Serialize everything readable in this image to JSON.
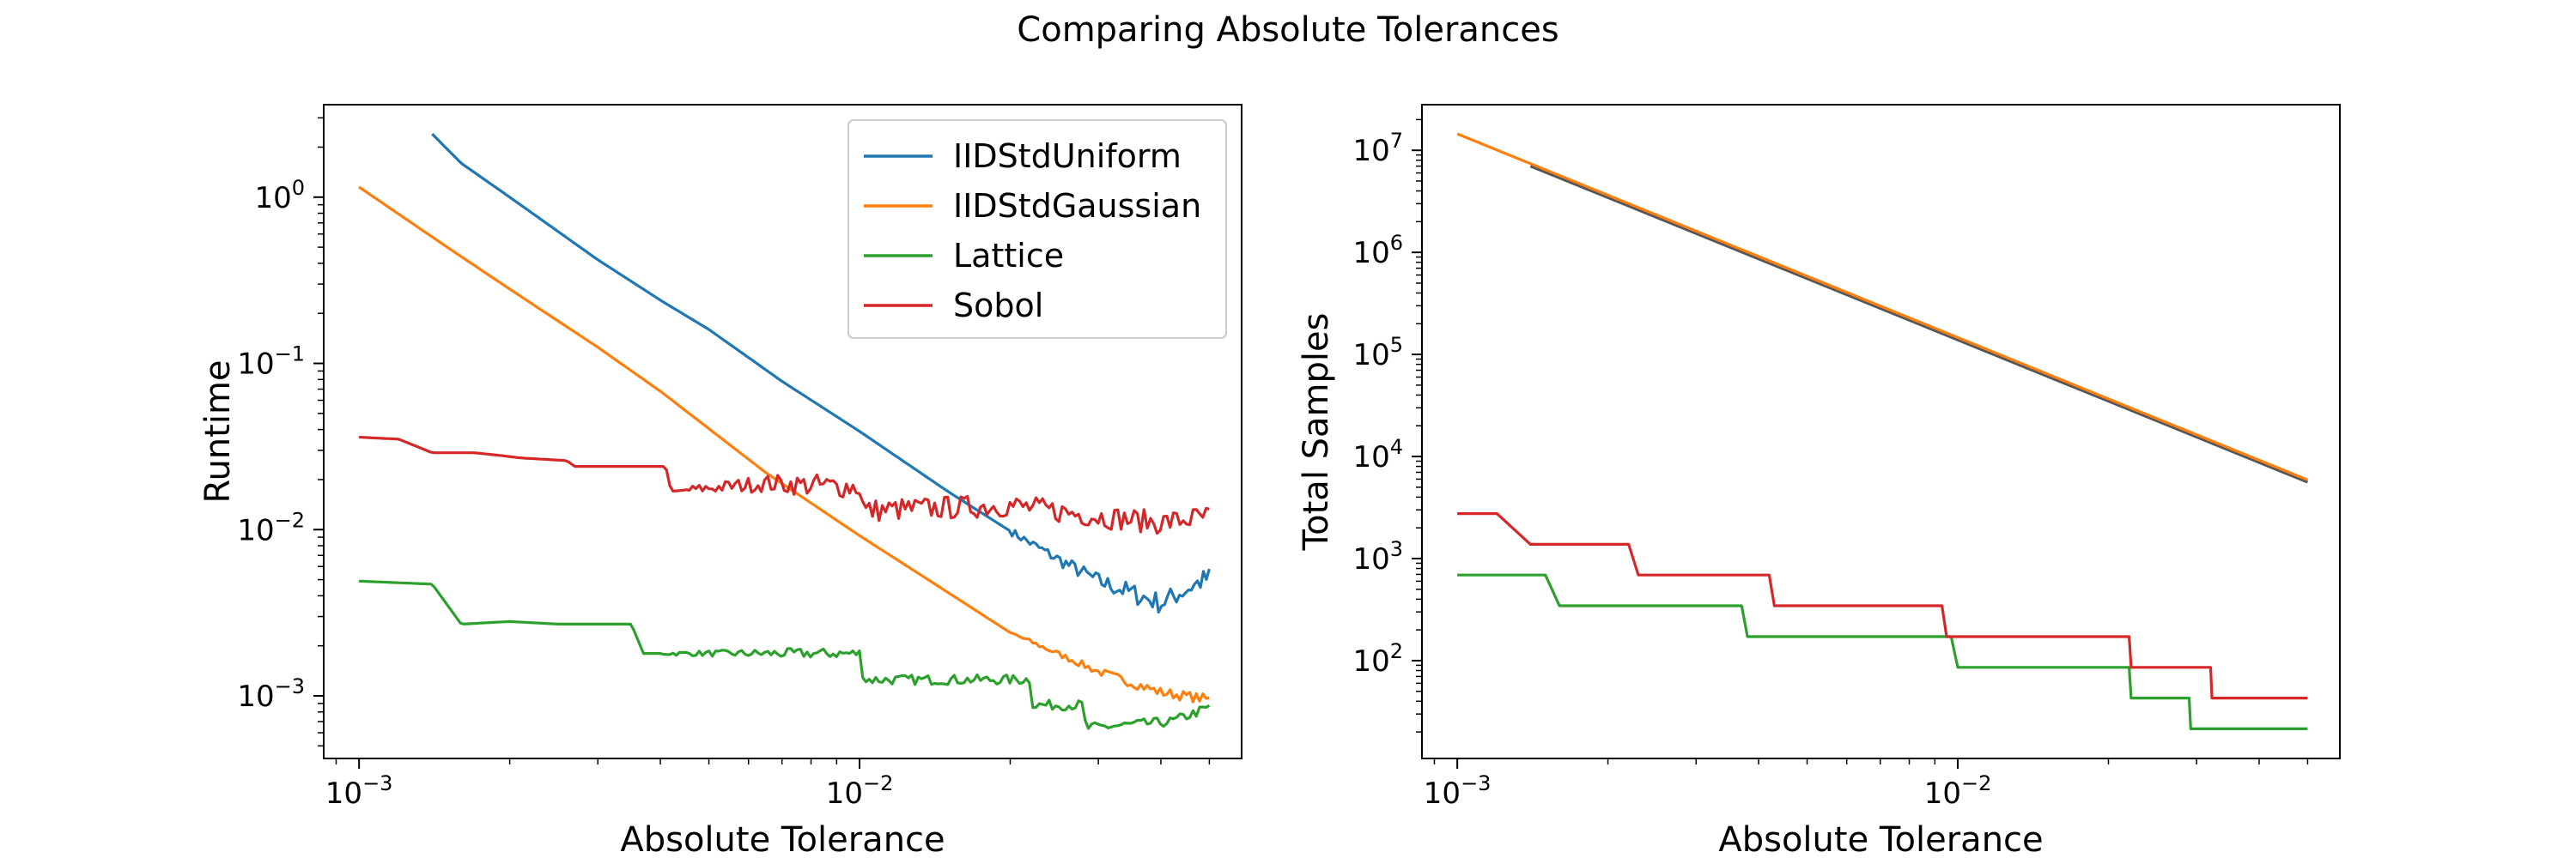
{
  "figure": {
    "suptitle": "Comparing Absolute Tolerances"
  },
  "colors": {
    "IIDStdUniform": "#1f77b4",
    "IIDStdGaussian": "#ff7f0e",
    "Lattice": "#2ca02c",
    "Sobol": "#d62728",
    "gray": "#555555"
  },
  "chart_data": [
    {
      "type": "line",
      "title": "",
      "xlabel": "Absolute Tolerance",
      "ylabel": "Runtime",
      "xscale": "log",
      "yscale": "log",
      "xlim": [
        0.00085,
        0.058
      ],
      "ylim": [
        0.00042,
        3.6
      ],
      "xticks": [
        {
          "value": 0.001,
          "base": "10",
          "exp": "−3"
        },
        {
          "value": 0.01,
          "base": "10",
          "exp": "−2"
        }
      ],
      "yticks": [
        {
          "value": 0.001,
          "base": "10",
          "exp": "−3"
        },
        {
          "value": 0.01,
          "base": "10",
          "exp": "−2"
        },
        {
          "value": 0.1,
          "base": "10",
          "exp": "−1"
        },
        {
          "value": 1,
          "base": "10",
          "exp": "0"
        }
      ],
      "legend": {
        "placement": "top-right"
      },
      "grid": false,
      "series": [
        {
          "name": "IIDStdUniform",
          "color": "#1f77b4",
          "x": [
            0.0014,
            0.0016,
            0.002,
            0.0025,
            0.003,
            0.004,
            0.005,
            0.007,
            0.01,
            0.015,
            0.02,
            0.025,
            0.03,
            0.04,
            0.05
          ],
          "y": [
            2.4,
            1.6,
            1.0,
            0.62,
            0.42,
            0.24,
            0.16,
            0.078,
            0.039,
            0.017,
            0.0098,
            0.0066,
            0.0049,
            0.0036,
            0.0052
          ],
          "noise": 0.13,
          "noise_from": 0.02
        },
        {
          "name": "IIDStdGaussian",
          "color": "#ff7f0e",
          "x": [
            0.001,
            0.0015,
            0.002,
            0.003,
            0.004,
            0.0065,
            0.01,
            0.015,
            0.02,
            0.03,
            0.04,
            0.05
          ],
          "y": [
            1.15,
            0.5,
            0.28,
            0.125,
            0.068,
            0.022,
            0.0092,
            0.0042,
            0.0024,
            0.0014,
            0.00105,
            0.00095
          ],
          "noise": 0.06,
          "noise_from": 0.02
        },
        {
          "name": "Lattice",
          "color": "#2ca02c",
          "x": [
            0.001,
            0.0014,
            0.0016,
            0.002,
            0.0025,
            0.0035,
            0.0037,
            0.01,
            0.0102,
            0.022,
            0.0222,
            0.028,
            0.0283,
            0.042,
            0.05
          ],
          "y": [
            0.0049,
            0.0047,
            0.0027,
            0.0028,
            0.0027,
            0.0027,
            0.0018,
            0.0018,
            0.00125,
            0.00125,
            0.00088,
            0.00088,
            0.00064,
            0.0007,
            0.00085
          ],
          "noise": 0.06,
          "noise_from": 0.004
        },
        {
          "name": "Sobol",
          "color": "#d62728",
          "x": [
            0.001,
            0.0012,
            0.0014,
            0.0017,
            0.0019,
            0.0021,
            0.0026,
            0.0027,
            0.0041,
            0.0042,
            0.0065,
            0.01,
            0.0102,
            0.02,
            0.03,
            0.04,
            0.05
          ],
          "y": [
            0.036,
            0.035,
            0.029,
            0.029,
            0.028,
            0.027,
            0.026,
            0.024,
            0.024,
            0.017,
            0.019,
            0.018,
            0.013,
            0.014,
            0.012,
            0.011,
            0.012
          ],
          "noise": 0.14,
          "noise_from": 0.0045
        }
      ]
    },
    {
      "type": "line",
      "title": "",
      "xlabel": "Absolute Tolerance",
      "ylabel": "Total Samples",
      "xscale": "log",
      "yscale": "log",
      "xlim": [
        0.00085,
        0.058
      ],
      "ylim": [
        11,
        28000000
      ],
      "xticks": [
        {
          "value": 0.001,
          "base": "10",
          "exp": "−3"
        },
        {
          "value": 0.01,
          "base": "10",
          "exp": "−2"
        }
      ],
      "yticks": [
        {
          "value": 100,
          "base": "10",
          "exp": "2"
        },
        {
          "value": 1000,
          "base": "10",
          "exp": "3"
        },
        {
          "value": 10000,
          "base": "10",
          "exp": "4"
        },
        {
          "value": 100000,
          "base": "10",
          "exp": "5"
        },
        {
          "value": 1000000,
          "base": "10",
          "exp": "6"
        },
        {
          "value": 10000000,
          "base": "10",
          "exp": "7"
        }
      ],
      "grid": false,
      "series": [
        {
          "name": "IIDStdUniform",
          "color": "#555555",
          "x": [
            0.0014,
            0.05
          ],
          "y": [
            7000000,
            5600
          ]
        },
        {
          "name": "IIDStdGaussian",
          "color": "#ff7f0e",
          "x": [
            0.001,
            0.05
          ],
          "y": [
            14500000,
            5900
          ]
        },
        {
          "name": "Lattice",
          "color": "#2ca02c",
          "x": [
            0.001,
            0.0015,
            0.0016,
            0.0037,
            0.0038,
            0.0097,
            0.01,
            0.022,
            0.0222,
            0.029,
            0.0292,
            0.05
          ],
          "y": [
            690,
            690,
            345,
            345,
            172,
            172,
            86,
            86,
            43,
            43,
            21.5,
            21.5
          ]
        },
        {
          "name": "Sobol",
          "color": "#d62728",
          "x": [
            0.001,
            0.0012,
            0.0014,
            0.0022,
            0.0023,
            0.0042,
            0.0043,
            0.0093,
            0.0095,
            0.022,
            0.0222,
            0.032,
            0.0322,
            0.05
          ],
          "y": [
            2760,
            2760,
            1380,
            1380,
            690,
            690,
            345,
            345,
            172,
            172,
            86,
            86,
            43,
            43
          ]
        }
      ]
    }
  ]
}
